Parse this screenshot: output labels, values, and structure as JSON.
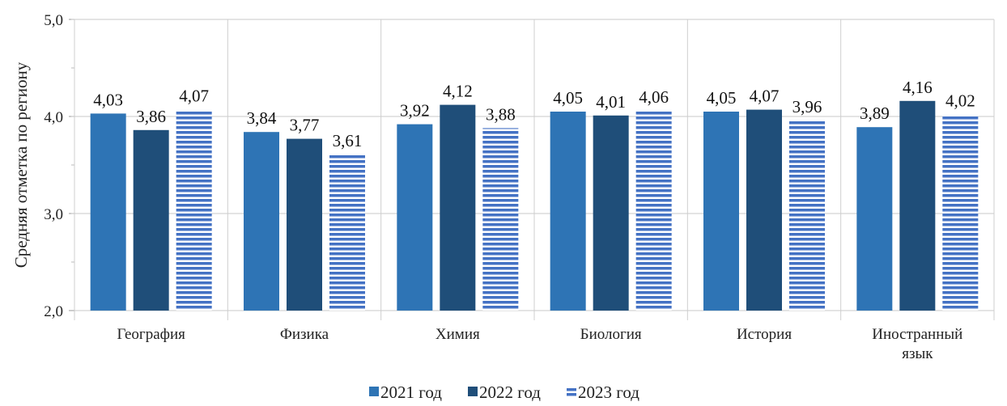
{
  "chart_data": {
    "type": "bar",
    "ylabel": "Средняя отметка по региону",
    "ylim": [
      2.0,
      5.0
    ],
    "yticks": [
      "2,0",
      "3,0",
      "4,0",
      "5,0"
    ],
    "categories": [
      [
        "География"
      ],
      [
        "Физика"
      ],
      [
        "Химия"
      ],
      [
        "Биология"
      ],
      [
        "История"
      ],
      [
        "Иностранный",
        "язык"
      ]
    ],
    "series": [
      {
        "name": "2021 год",
        "color": "#2E74B5",
        "pattern": "solid",
        "values": [
          4.03,
          3.84,
          3.92,
          4.05,
          4.05,
          3.89
        ],
        "labels": [
          "4,03",
          "3,84",
          "3,92",
          "4,05",
          "4,05",
          "3,89"
        ]
      },
      {
        "name": "2022 год",
        "color": "#1F4E79",
        "pattern": "solid",
        "values": [
          3.86,
          3.77,
          4.12,
          4.01,
          4.07,
          4.16
        ],
        "labels": [
          "3,86",
          "3,77",
          "4,12",
          "4,01",
          "4,07",
          "4,16"
        ]
      },
      {
        "name": "2023 год",
        "color": "#4472C4",
        "pattern": "horizontal-stripes",
        "values": [
          4.07,
          3.61,
          3.88,
          4.06,
          3.96,
          4.02
        ],
        "labels": [
          "4,07",
          "3,61",
          "3,88",
          "4,06",
          "3,96",
          "4,02"
        ]
      }
    ],
    "grid": true,
    "legend": "bottom"
  }
}
